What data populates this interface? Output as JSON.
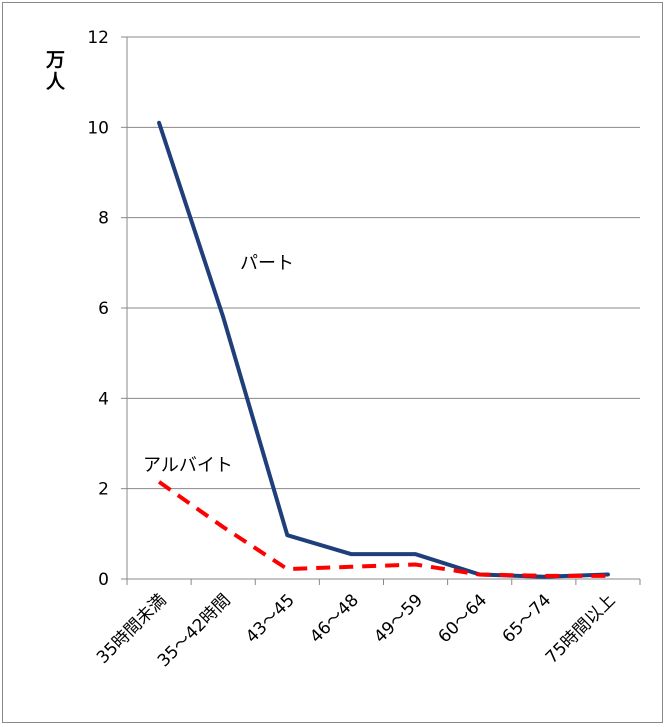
{
  "chart_data": {
    "type": "line",
    "categories": [
      "35時間未満",
      "35～42時間",
      "43～45",
      "46～48",
      "49～59",
      "60～64",
      "65～74",
      "75時間以上"
    ],
    "series": [
      {
        "name": "パート",
        "values": [
          10.1,
          5.8,
          0.97,
          0.55,
          0.55,
          0.1,
          0.05,
          0.1
        ],
        "color": "#1f3f7a",
        "style": "solid"
      },
      {
        "name": "アルバイト",
        "values": [
          2.15,
          1.15,
          0.22,
          0.27,
          0.32,
          0.1,
          0.07,
          0.07
        ],
        "color": "#ff0000",
        "style": "dashed"
      }
    ],
    "ylim": [
      0,
      12
    ],
    "yticks": [
      0,
      2,
      4,
      6,
      8,
      10,
      12
    ],
    "ylabel": "万人",
    "grid": true,
    "legend": "inline labels"
  }
}
